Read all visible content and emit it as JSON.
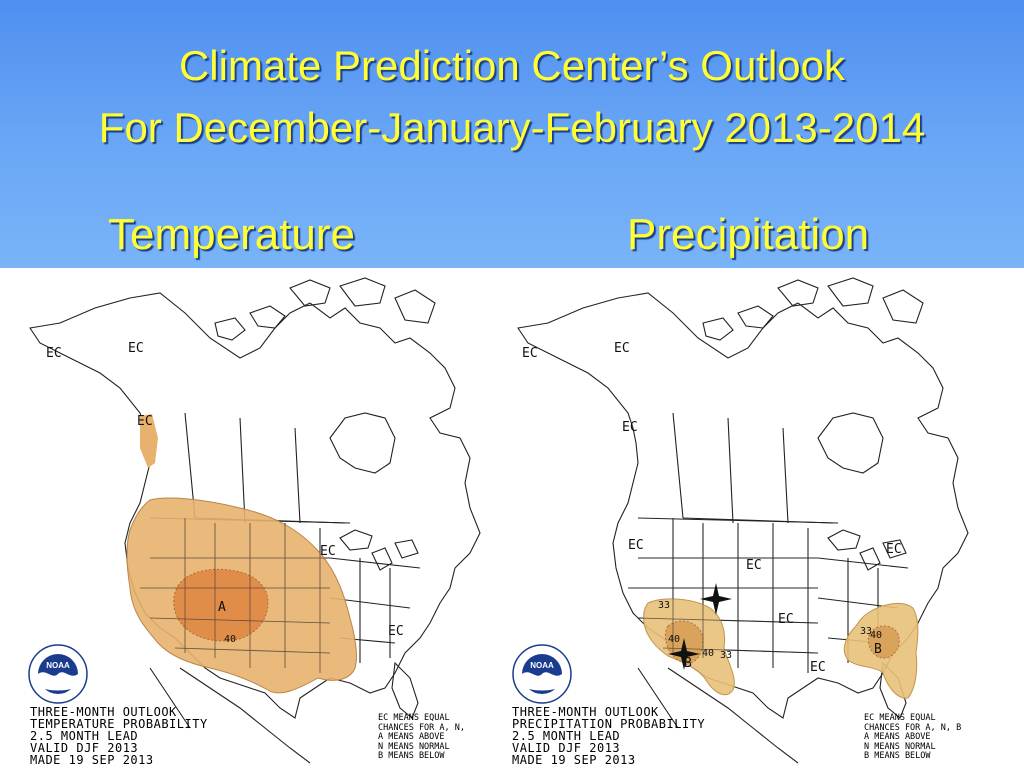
{
  "header": {
    "title_line1": "Climate Prediction Center’s Outlook",
    "title_line2": "For December-January-February 2013-2014",
    "left_subtitle": "Temperature",
    "right_subtitle": "Precipitation"
  },
  "colors": {
    "banner": "#6aa7f6",
    "title_text": "#ffff33",
    "above_33": "#e8b26e",
    "above_40": "#e08a48",
    "below_33": "#e8c07a",
    "below_40": "#d9a15a"
  },
  "temperature_map": {
    "labels": {
      "ec_far_west": "EC",
      "ec_alaska": "EC",
      "ec_coast": "EC",
      "ec_central": "EC",
      "ec_south": "EC",
      "a_center": "A",
      "p40": "40"
    },
    "footer": {
      "line1": "THREE-MONTH OUTLOOK",
      "line2": "TEMPERATURE PROBABILITY",
      "line3": "2.5 MONTH LEAD",
      "line4": "VALID DJF 2013",
      "line5": "MADE 19 SEP 2013"
    },
    "legend": {
      "line1": "EC MEANS EQUAL",
      "line2": "CHANCES FOR A, N,",
      "line3": "A MEANS ABOVE",
      "line4": "N MEANS NORMAL",
      "line5": "B MEANS BELOW"
    }
  },
  "precipitation_map": {
    "labels": {
      "ec_far_west": "EC",
      "ec_alaska": "EC",
      "ec_coast": "EC",
      "ec_west": "EC",
      "ec_northern": "EC",
      "ec_east": "EC",
      "ec_mid": "EC",
      "ec_gulf": "EC",
      "p33_sw": "33",
      "p40_sw": "40",
      "b_sw": "B",
      "p40_sw2": "40",
      "p33_sw2": "33",
      "p33_se": "33",
      "p40_se": "40",
      "b_se": "B"
    },
    "footer": {
      "line1": "THREE-MONTH OUTLOOK",
      "line2": "PRECIPITATION PROBABILITY",
      "line3": "2.5 MONTH LEAD",
      "line4": "VALID DJF 2013",
      "line5": "MADE 19 SEP 2013"
    },
    "legend": {
      "line1": "EC MEANS EQUAL",
      "line2": "CHANCES FOR A, N, B",
      "line3": "A MEANS ABOVE",
      "line4": "N MEANS NORMAL",
      "line5": "B MEANS BELOW"
    }
  },
  "logo": {
    "text": "NOAA",
    "ring_text": "NATIONAL OCEANIC AND ATMOSPHERIC ADMINISTRATION"
  }
}
